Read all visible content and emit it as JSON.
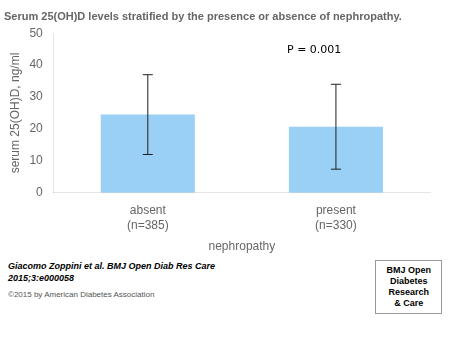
{
  "chart_data": {
    "type": "bar",
    "title": "Serum 25(OH)D levels stratified by the presence or absence of nephropathy.",
    "xlabel": "nephropathy",
    "ylabel": "serum 25(OH)D, ng/ml",
    "categories": [
      "absent\n(n=385)",
      "present\n(n=330)"
    ],
    "values": [
      24.5,
      20.7
    ],
    "error_upper": [
      12.5,
      13.3
    ],
    "error_lower": [
      12.5,
      13.3
    ],
    "ylim": [
      0,
      50
    ],
    "yticks": [
      0,
      10,
      20,
      30,
      40,
      50
    ],
    "grid": false,
    "annotation": "P = 0.001",
    "citation": [
      "Giacomo Zoppini et al. BMJ Open Diab Res Care",
      "2015;3:e000058"
    ],
    "copyright": "©2015 by American Diabetes Association",
    "logo_text": "BMJ Open\nDiabetes\nResearch\n& Care"
  }
}
